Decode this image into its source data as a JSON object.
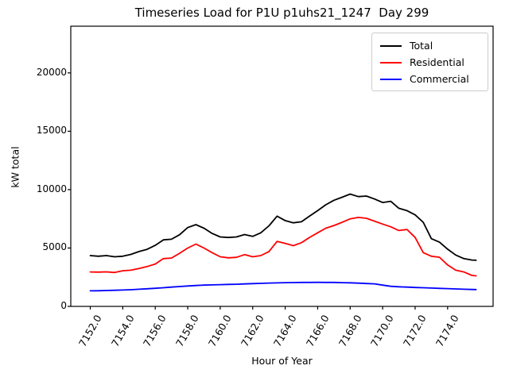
{
  "chart_data": {
    "type": "line",
    "title": "Timeseries Load for P1U p1uhs21_1247  Day 299",
    "xlabel": "Hour of Year",
    "ylabel": "kW total",
    "xlim": [
      7150.8,
      7176.8
    ],
    "ylim": [
      0,
      24000
    ],
    "grid": false,
    "legend_position": "upper right",
    "x_tick_rotation": 60,
    "xticks": [
      {
        "value": 7152,
        "label": "7152.0"
      },
      {
        "value": 7154,
        "label": "7154.0"
      },
      {
        "value": 7156,
        "label": "7156.0"
      },
      {
        "value": 7158,
        "label": "7158.0"
      },
      {
        "value": 7160,
        "label": "7160.0"
      },
      {
        "value": 7162,
        "label": "7162.0"
      },
      {
        "value": 7164,
        "label": "7164.0"
      },
      {
        "value": 7166,
        "label": "7166.0"
      },
      {
        "value": 7168,
        "label": "7168.0"
      },
      {
        "value": 7170,
        "label": "7170.0"
      },
      {
        "value": 7172,
        "label": "7172.0"
      },
      {
        "value": 7174,
        "label": "7174.0"
      }
    ],
    "yticks": [
      {
        "value": 0,
        "label": "0"
      },
      {
        "value": 5000,
        "label": "5000"
      },
      {
        "value": 10000,
        "label": "10000"
      },
      {
        "value": 15000,
        "label": "15000"
      },
      {
        "value": 20000,
        "label": "20000"
      }
    ],
    "x": [
      7152,
      7152.5,
      7153,
      7153.5,
      7154,
      7154.5,
      7155,
      7155.5,
      7156,
      7156.5,
      7157,
      7157.5,
      7158,
      7158.5,
      7159,
      7159.5,
      7160,
      7160.5,
      7161,
      7161.5,
      7162,
      7162.5,
      7163,
      7163.5,
      7164,
      7164.5,
      7165,
      7165.5,
      7166,
      7166.5,
      7167,
      7167.5,
      7168,
      7168.5,
      7169,
      7169.5,
      7170,
      7170.5,
      7171,
      7171.5,
      7172,
      7172.5,
      7173,
      7173.5,
      7174,
      7174.5,
      7175,
      7175.5,
      7175.75
    ],
    "series": [
      {
        "name": "Total",
        "color": "#000000",
        "values": [
          4350,
          4300,
          4350,
          4250,
          4300,
          4450,
          4700,
          4890,
          5230,
          5700,
          5750,
          6140,
          6750,
          7000,
          6700,
          6250,
          5950,
          5900,
          5950,
          6150,
          6000,
          6300,
          6900,
          7730,
          7350,
          7160,
          7250,
          7730,
          8200,
          8700,
          9090,
          9350,
          9620,
          9400,
          9450,
          9200,
          8900,
          9000,
          8400,
          8200,
          7840,
          7200,
          5800,
          5500,
          4900,
          4400,
          4090,
          3970,
          3950
        ]
      },
      {
        "name": "Residential",
        "color": "#ff0000",
        "values": [
          2950,
          2940,
          2960,
          2900,
          3050,
          3100,
          3250,
          3410,
          3630,
          4090,
          4140,
          4550,
          5000,
          5340,
          5000,
          4600,
          4250,
          4160,
          4200,
          4430,
          4250,
          4350,
          4700,
          5570,
          5400,
          5200,
          5450,
          5910,
          6300,
          6700,
          6930,
          7200,
          7500,
          7620,
          7550,
          7300,
          7050,
          6820,
          6500,
          6590,
          5900,
          4600,
          4300,
          4210,
          3550,
          3100,
          2950,
          2650,
          2620
        ]
      },
      {
        "name": "Commercial",
        "color": "#0000ff",
        "values": [
          1330,
          1340,
          1360,
          1380,
          1400,
          1430,
          1470,
          1510,
          1550,
          1600,
          1650,
          1700,
          1750,
          1790,
          1820,
          1840,
          1860,
          1880,
          1900,
          1925,
          1950,
          1975,
          2000,
          2015,
          2030,
          2040,
          2050,
          2055,
          2060,
          2055,
          2050,
          2035,
          2020,
          1990,
          1960,
          1930,
          1820,
          1720,
          1680,
          1650,
          1620,
          1595,
          1570,
          1545,
          1520,
          1495,
          1470,
          1450,
          1440
        ]
      }
    ]
  }
}
